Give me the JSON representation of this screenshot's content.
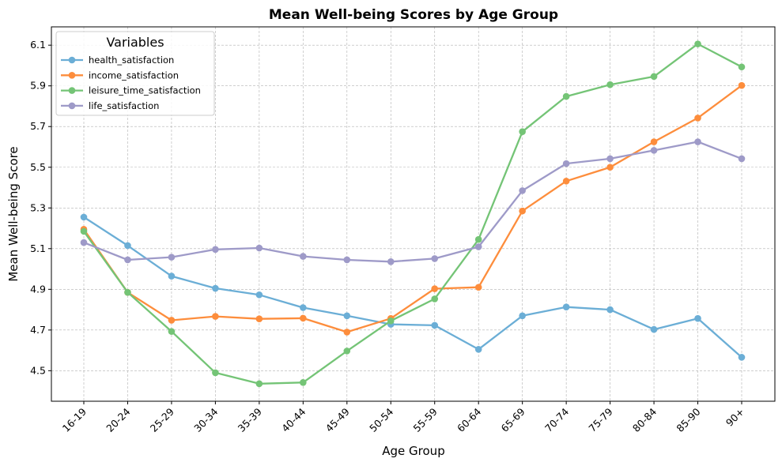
{
  "chart_data": {
    "type": "line",
    "title": "Mean Well-being Scores by Age Group",
    "xlabel": "Age Group",
    "ylabel": "Mean Well-being Score",
    "categories": [
      "16-19",
      "20-24",
      "25-29",
      "30-34",
      "35-39",
      "40-44",
      "45-49",
      "50-54",
      "55-59",
      "60-64",
      "65-69",
      "70-74",
      "75-79",
      "80-84",
      "85-90",
      "90+"
    ],
    "yticks": [
      "4.5",
      "4.7",
      "4.9",
      "5.1",
      "5.3",
      "5.5",
      "5.7",
      "5.9",
      "6.1"
    ],
    "ylim": [
      4.35,
      6.19
    ],
    "grid": true,
    "legend": {
      "title": "Variables",
      "position": "top-left"
    },
    "series": [
      {
        "name": "health_satisfaction",
        "color": "#6baed6",
        "values": [
          5.255,
          5.115,
          4.965,
          4.905,
          4.873,
          4.81,
          4.77,
          4.728,
          4.723,
          4.605,
          4.77,
          4.813,
          4.8,
          4.703,
          4.757,
          4.566
        ]
      },
      {
        "name": "income_satisfaction",
        "color": "#fd8d3c",
        "values": [
          5.195,
          4.885,
          4.748,
          4.767,
          4.755,
          4.758,
          4.69,
          4.757,
          4.903,
          4.91,
          5.285,
          5.432,
          5.5,
          5.625,
          5.742,
          5.902
        ]
      },
      {
        "name": "leisure_time_satisfaction",
        "color": "#74c476",
        "values": [
          5.185,
          4.885,
          4.693,
          4.49,
          4.436,
          4.442,
          4.597,
          4.745,
          4.853,
          5.145,
          5.675,
          5.848,
          5.906,
          5.946,
          6.106,
          5.993
        ]
      },
      {
        "name": "life_satisfaction",
        "color": "#9e9ac8",
        "values": [
          5.13,
          5.045,
          5.058,
          5.096,
          5.103,
          5.062,
          5.045,
          5.036,
          5.051,
          5.109,
          5.385,
          5.518,
          5.542,
          5.583,
          5.625,
          5.542
        ]
      }
    ]
  }
}
